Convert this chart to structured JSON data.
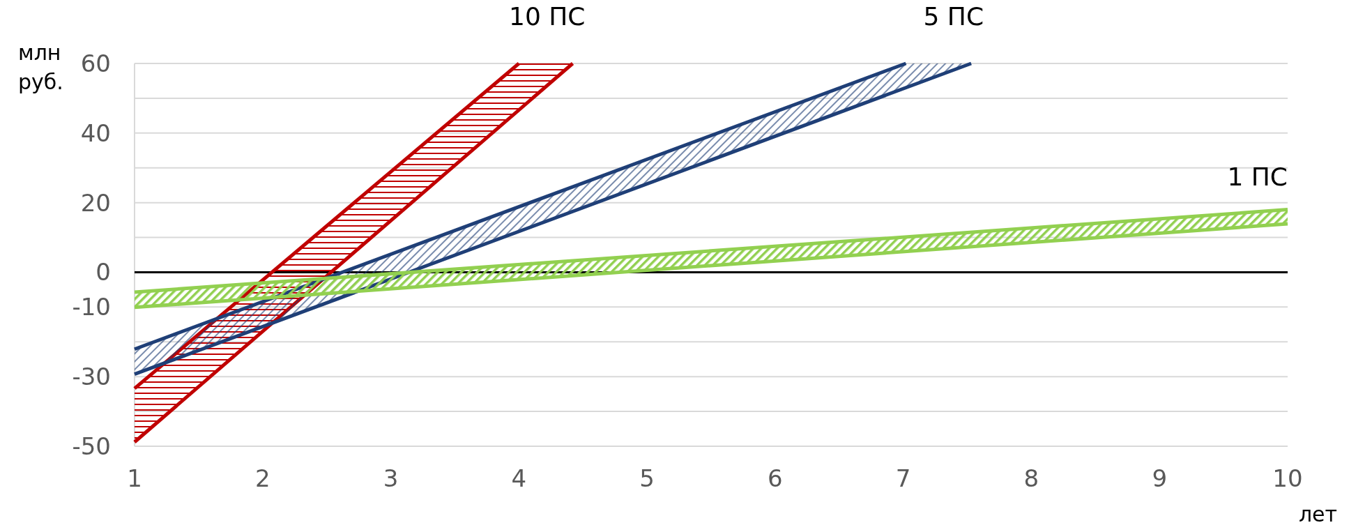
{
  "chart_data": {
    "type": "line",
    "xlabel": "лет",
    "ylabel": "млн руб.",
    "xlim": [
      1,
      10
    ],
    "xticks": [
      1,
      2,
      3,
      4,
      5,
      6,
      7,
      8,
      9,
      10
    ],
    "ylim": [
      -50,
      60
    ],
    "yticks": [
      {
        "value": -50,
        "label": "-50"
      },
      {
        "value": -40,
        "label": null
      },
      {
        "value": -30,
        "label": "-30"
      },
      {
        "value": -20,
        "label": null
      },
      {
        "value": -10,
        "label": "-10"
      },
      {
        "value": 0,
        "label": "0"
      },
      {
        "value": 10,
        "label": null
      },
      {
        "value": 20,
        "label": "20"
      },
      {
        "value": 30,
        "label": null
      },
      {
        "value": 40,
        "label": "40"
      },
      {
        "value": 50,
        "label": null
      },
      {
        "value": 60,
        "label": "60"
      }
    ],
    "grid": "y",
    "marker": "none",
    "line_style": "solid",
    "ref_lines": [
      {
        "axis": "y",
        "value": 0,
        "label": null,
        "color": "#000000"
      }
    ],
    "series": [
      {
        "name": "10 ПС",
        "color": "#c00000",
        "x": [
          1,
          4,
          4.42
        ],
        "values": [
          -33.4,
          60,
          null
        ],
        "lower": [
          -48.8,
          46.6,
          60
        ],
        "upper": [
          -33.4,
          60,
          60
        ]
      },
      {
        "color": "#c00000",
        "x": [
          1,
          4.42
        ],
        "values": [
          -48.8,
          60
        ]
      },
      {
        "name": "5 ПС",
        "color": "#1f3f77",
        "x": [
          1,
          7.02,
          7.53
        ],
        "values": [
          -22.1,
          60,
          null
        ],
        "lower": [
          -29.3,
          53.1,
          60
        ],
        "upper": [
          -22.1,
          60,
          60
        ]
      },
      {
        "color": "#1f3f77",
        "x": [
          1,
          7.53
        ],
        "values": [
          -29.3,
          60
        ]
      },
      {
        "name": "1 ПС",
        "color": "#92d050",
        "x": [
          1,
          10
        ],
        "values": [
          -5.7,
          18
        ],
        "lower": [
          -10.1,
          13.9
        ],
        "upper": [
          -5.7,
          18
        ]
      },
      {
        "color": "#92d050",
        "x": [
          1,
          10
        ],
        "values": [
          -10.1,
          13.9
        ]
      }
    ]
  }
}
